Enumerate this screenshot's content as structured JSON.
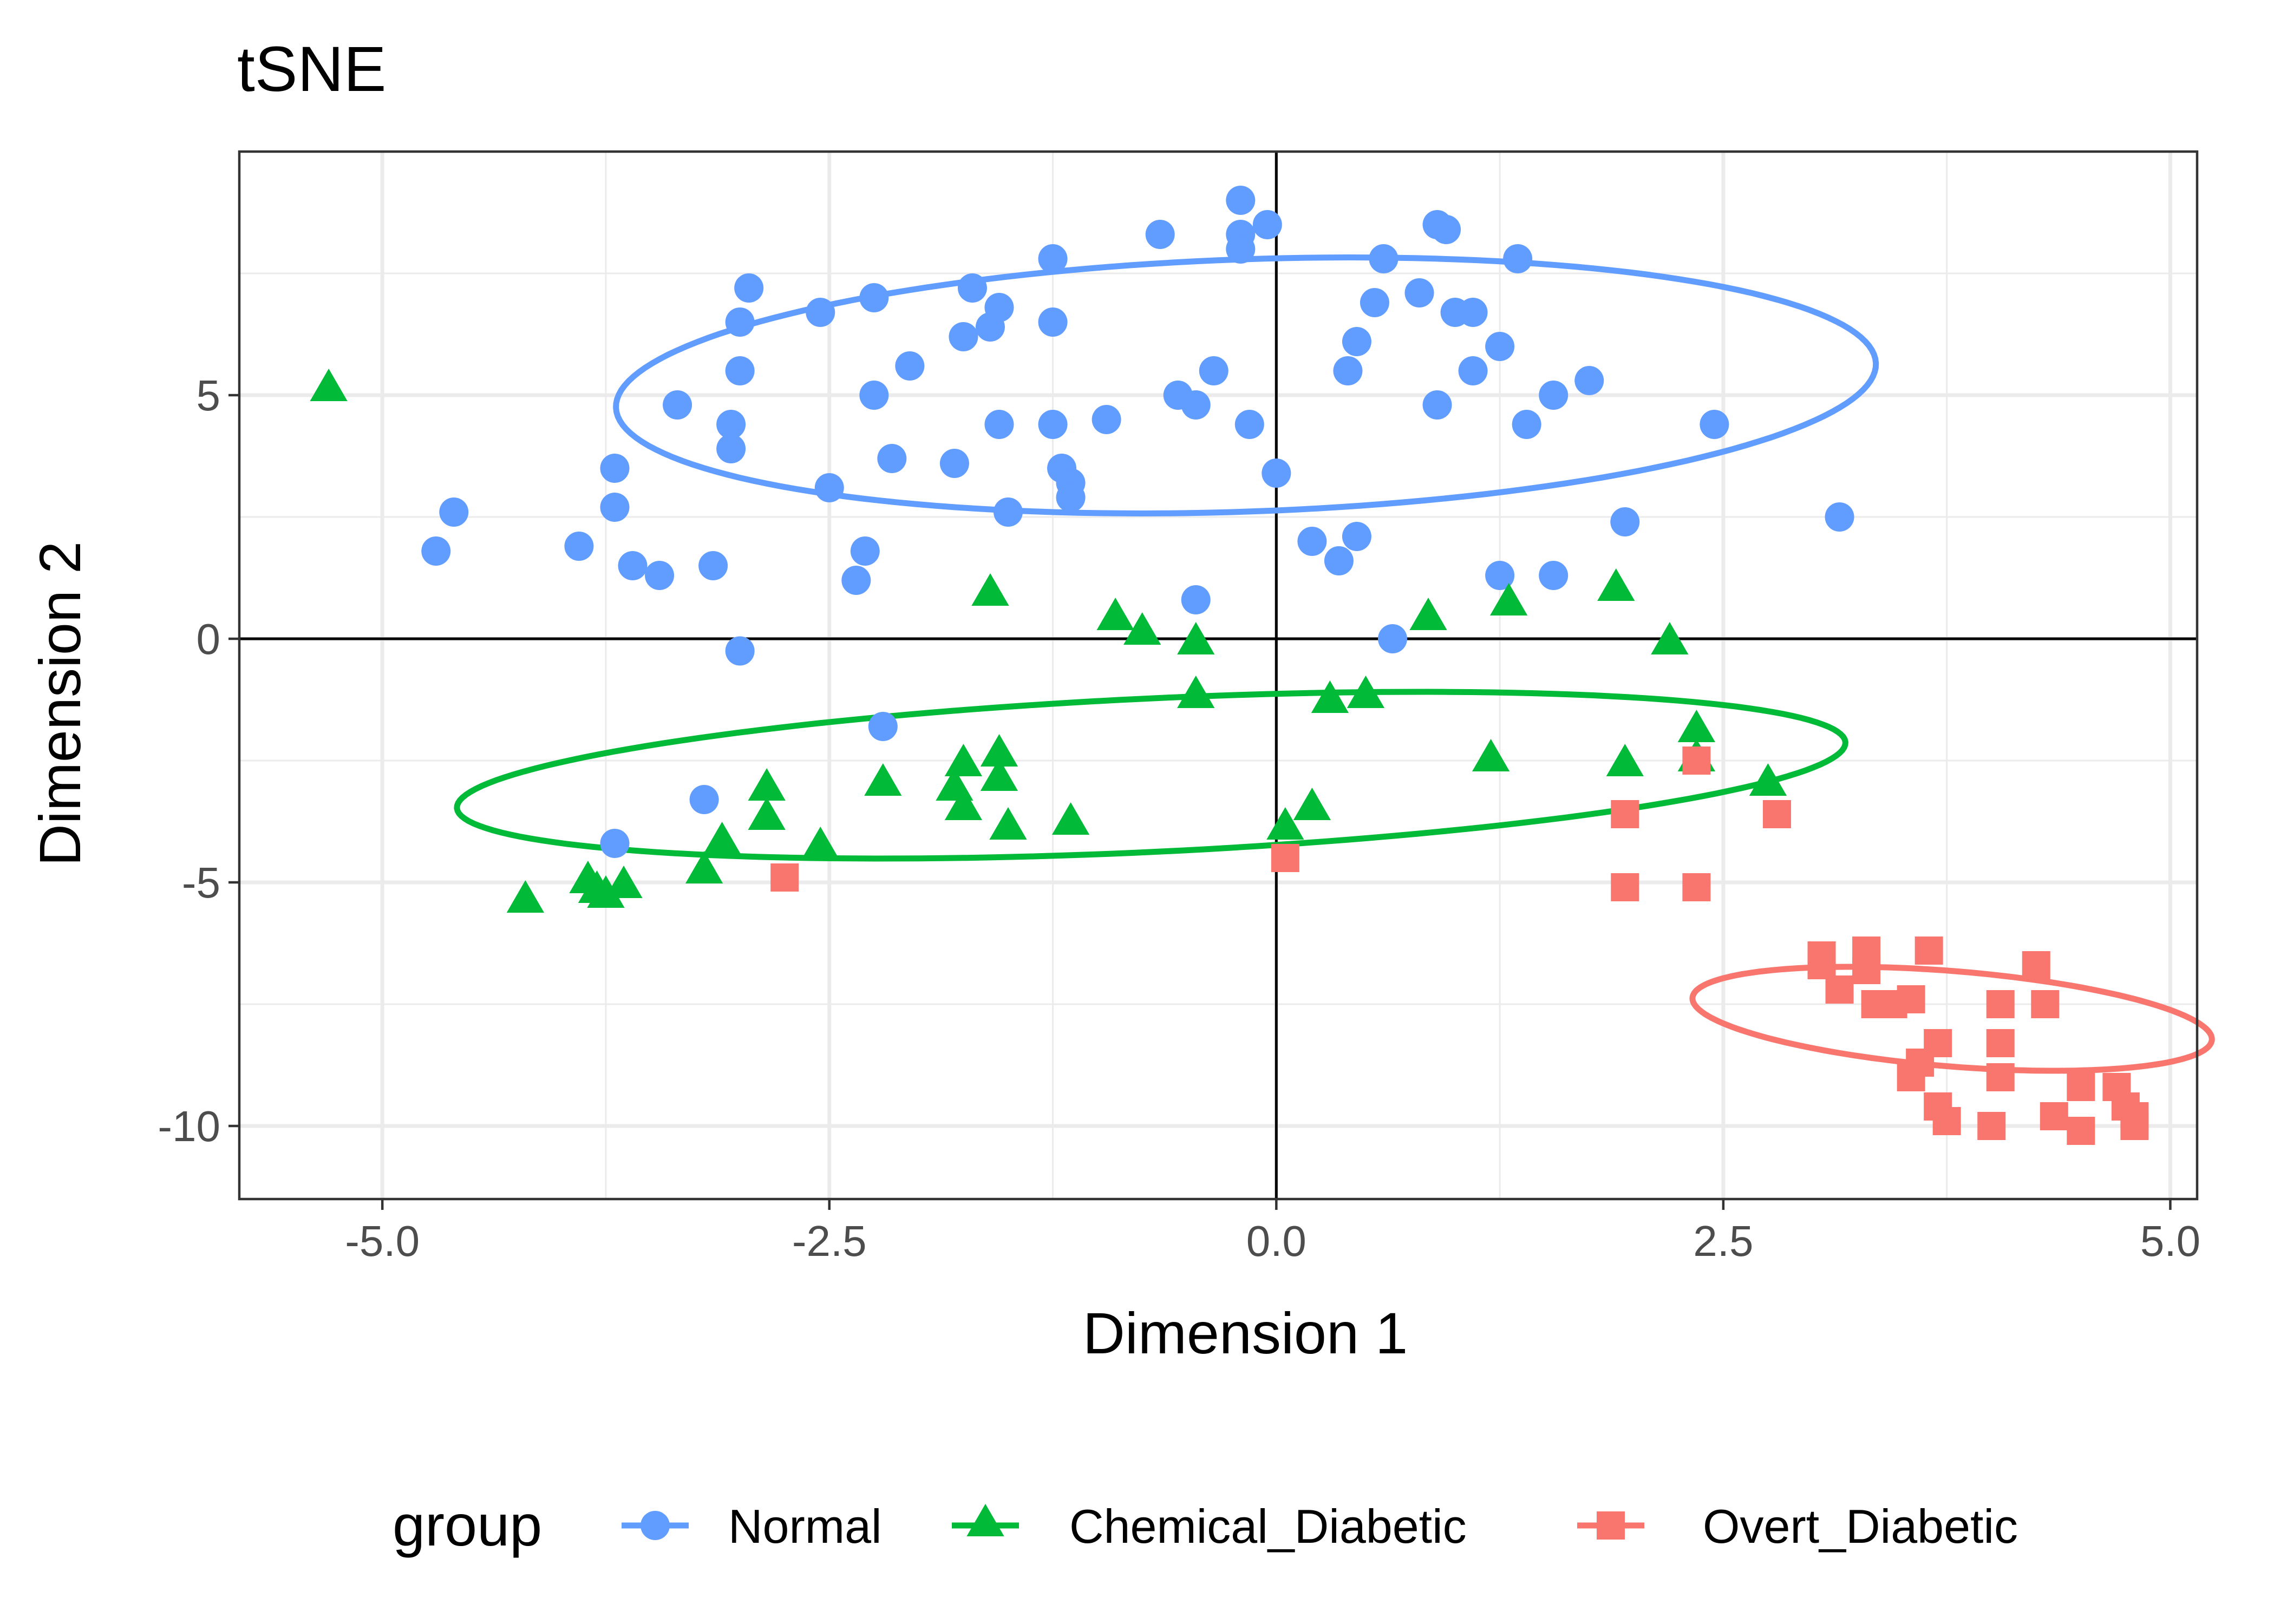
{
  "chart_data": {
    "type": "scatter",
    "title": "tSNE",
    "xlabel": "Dimension 1",
    "ylabel": "Dimension 2",
    "xlim": [
      -5.8,
      5.15
    ],
    "ylim": [
      -11.5,
      10.0
    ],
    "xticks": [
      -5.0,
      -2.5,
      0.0,
      2.5,
      5.0
    ],
    "xtick_labels": [
      "-5.0",
      "-2.5",
      "0.0",
      "2.5",
      "5.0"
    ],
    "yticks": [
      -10,
      -5,
      0,
      5
    ],
    "ytick_labels": [
      "-10",
      "-5",
      "0",
      "5"
    ],
    "grid": true,
    "reference_lines": {
      "x": 0,
      "y": 0
    },
    "legend": {
      "title": "group",
      "position": "bottom"
    },
    "series": [
      {
        "name": "Normal",
        "color": "#619CFF",
        "marker": "circle",
        "ellipse": {
          "cx": -0.17,
          "cy": 5.2,
          "rx": 3.58,
          "ry": 2.55,
          "angle_deg": 14.6
        },
        "points": [
          [
            -4.7,
            1.8
          ],
          [
            -4.6,
            2.6
          ],
          [
            -3.9,
            1.9
          ],
          [
            -3.7,
            3.5
          ],
          [
            -3.7,
            2.7
          ],
          [
            -3.6,
            1.5
          ],
          [
            -3.45,
            1.3
          ],
          [
            -3.35,
            4.8
          ],
          [
            -3.15,
            1.5
          ],
          [
            -3.05,
            4.4
          ],
          [
            -3.05,
            3.9
          ],
          [
            -3.0,
            6.5
          ],
          [
            -3.0,
            5.5
          ],
          [
            -2.95,
            7.2
          ],
          [
            -3.0,
            -0.25
          ],
          [
            -2.55,
            6.7
          ],
          [
            -2.5,
            3.1
          ],
          [
            -2.3,
            1.8
          ],
          [
            -2.25,
            5.0
          ],
          [
            -2.25,
            7.0
          ],
          [
            -2.15,
            3.7
          ],
          [
            -2.05,
            5.6
          ],
          [
            -1.8,
            3.6
          ],
          [
            -1.75,
            6.2
          ],
          [
            -1.7,
            7.2
          ],
          [
            -1.6,
            6.4
          ],
          [
            -1.55,
            4.4
          ],
          [
            -1.55,
            6.8
          ],
          [
            -1.5,
            2.6
          ],
          [
            -1.25,
            4.4
          ],
          [
            -1.25,
            6.5
          ],
          [
            -1.25,
            7.8
          ],
          [
            -1.2,
            3.5
          ],
          [
            -1.15,
            3.2
          ],
          [
            -1.15,
            2.9
          ],
          [
            -0.95,
            4.5
          ],
          [
            -0.65,
            8.3
          ],
          [
            -0.55,
            5.0
          ],
          [
            -0.45,
            4.8
          ],
          [
            -0.35,
            5.5
          ],
          [
            -0.2,
            9.0
          ],
          [
            -0.2,
            8.3
          ],
          [
            -0.2,
            8.0
          ],
          [
            -0.15,
            4.4
          ],
          [
            -0.05,
            8.5
          ],
          [
            0.0,
            3.4
          ],
          [
            0.2,
            2.0
          ],
          [
            0.35,
            1.6
          ],
          [
            0.4,
            5.5
          ],
          [
            0.45,
            6.1
          ],
          [
            0.45,
            2.1
          ],
          [
            0.55,
            6.9
          ],
          [
            0.6,
            7.8
          ],
          [
            0.8,
            7.1
          ],
          [
            0.9,
            4.8
          ],
          [
            0.9,
            8.5
          ],
          [
            0.95,
            8.4
          ],
          [
            1.0,
            6.7
          ],
          [
            1.1,
            6.7
          ],
          [
            1.1,
            5.5
          ],
          [
            1.25,
            6.0
          ],
          [
            1.35,
            7.8
          ],
          [
            1.4,
            4.4
          ],
          [
            1.55,
            5.0
          ],
          [
            1.75,
            5.3
          ],
          [
            2.45,
            4.4
          ],
          [
            3.15,
            2.5
          ],
          [
            1.95,
            2.4
          ],
          [
            1.55,
            1.3
          ],
          [
            1.25,
            1.3
          ],
          [
            0.65,
            0.0
          ],
          [
            -0.45,
            0.8
          ],
          [
            -2.35,
            1.2
          ],
          [
            -2.2,
            -1.8
          ],
          [
            -3.2,
            -3.3
          ],
          [
            -3.7,
            -4.2
          ]
        ]
      },
      {
        "name": "Chemical_Diabetic",
        "color": "#00BA38",
        "marker": "triangle",
        "ellipse": {
          "cx": -0.7,
          "cy": -2.8,
          "rx": 3.95,
          "ry": 1.55,
          "angle_deg": 11.5
        },
        "points": [
          [
            -5.3,
            5.1
          ],
          [
            -4.2,
            -5.4
          ],
          [
            -3.85,
            -5.0
          ],
          [
            -3.8,
            -5.2
          ],
          [
            -3.75,
            -5.3
          ],
          [
            -3.65,
            -5.1
          ],
          [
            -3.2,
            -4.8
          ],
          [
            -3.1,
            -4.2
          ],
          [
            -2.85,
            -3.1
          ],
          [
            -2.85,
            -3.7
          ],
          [
            -2.55,
            -4.3
          ],
          [
            -2.2,
            -3.0
          ],
          [
            -1.8,
            -3.1
          ],
          [
            -1.75,
            -2.6
          ],
          [
            -1.75,
            -3.5
          ],
          [
            -1.55,
            -2.9
          ],
          [
            -1.55,
            -2.4
          ],
          [
            -1.5,
            -3.9
          ],
          [
            -1.15,
            -3.8
          ],
          [
            -1.6,
            0.9
          ],
          [
            -0.9,
            0.4
          ],
          [
            -0.75,
            0.1
          ],
          [
            -0.45,
            -0.1
          ],
          [
            -0.45,
            -1.2
          ],
          [
            0.05,
            -3.9
          ],
          [
            0.2,
            -3.5
          ],
          [
            0.3,
            -1.3
          ],
          [
            0.5,
            -1.2
          ],
          [
            0.85,
            0.4
          ],
          [
            1.2,
            -2.5
          ],
          [
            1.3,
            0.7
          ],
          [
            1.9,
            1.0
          ],
          [
            1.95,
            -2.6
          ],
          [
            2.2,
            -0.1
          ],
          [
            2.35,
            -2.5
          ],
          [
            2.35,
            -1.9
          ],
          [
            2.75,
            -3.0
          ]
        ]
      },
      {
        "name": "Overt_Diabetic",
        "color": "#F8766D",
        "marker": "square",
        "ellipse": {
          "cx": 3.78,
          "cy": -7.8,
          "rx": 1.55,
          "ry": 0.92,
          "angle_deg": -25.7
        },
        "points": [
          [
            -2.75,
            -4.9
          ],
          [
            0.05,
            -4.5
          ],
          [
            1.95,
            -3.6
          ],
          [
            1.95,
            -5.1
          ],
          [
            2.35,
            -2.5
          ],
          [
            2.35,
            -5.1
          ],
          [
            2.8,
            -3.6
          ],
          [
            3.05,
            -6.7
          ],
          [
            3.05,
            -6.5
          ],
          [
            3.15,
            -7.2
          ],
          [
            3.3,
            -6.4
          ],
          [
            3.3,
            -6.8
          ],
          [
            3.35,
            -7.5
          ],
          [
            3.45,
            -7.5
          ],
          [
            3.55,
            -7.4
          ],
          [
            3.55,
            -9.0
          ],
          [
            3.6,
            -8.7
          ],
          [
            3.65,
            -6.4
          ],
          [
            3.7,
            -8.3
          ],
          [
            3.7,
            -9.6
          ],
          [
            3.75,
            -9.9
          ],
          [
            4.0,
            -10.0
          ],
          [
            4.05,
            -7.5
          ],
          [
            4.05,
            -8.3
          ],
          [
            4.05,
            -9.0
          ],
          [
            4.25,
            -6.7
          ],
          [
            4.3,
            -7.5
          ],
          [
            4.35,
            -9.8
          ],
          [
            4.5,
            -9.2
          ],
          [
            4.5,
            -10.1
          ],
          [
            4.7,
            -9.2
          ],
          [
            4.75,
            -9.6
          ],
          [
            4.8,
            -9.8
          ],
          [
            4.8,
            -10.0
          ]
        ]
      }
    ]
  }
}
